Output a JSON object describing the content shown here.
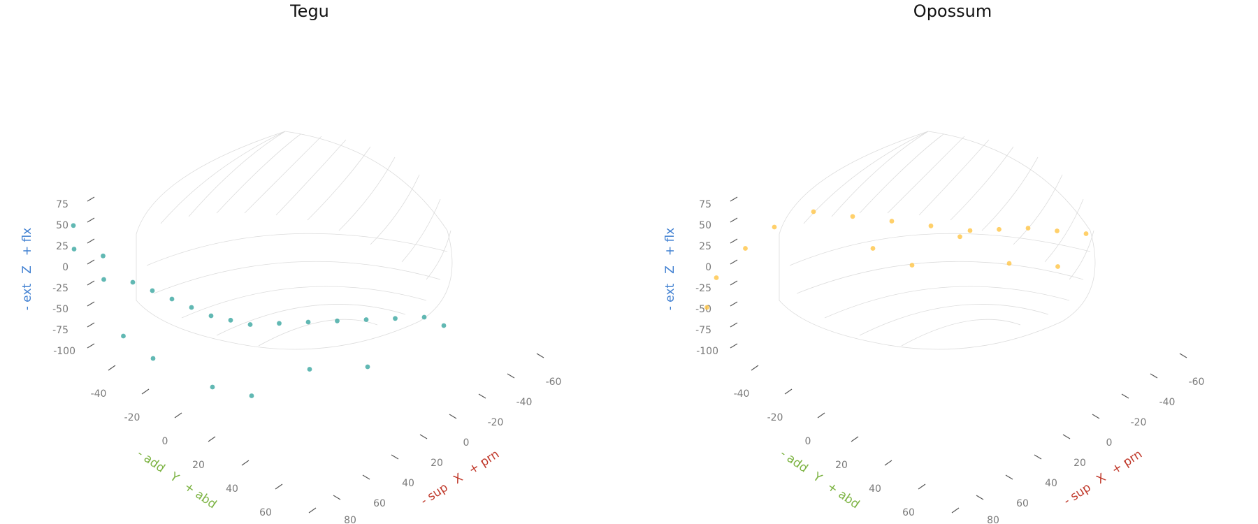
{
  "chart_data": [
    {
      "type": "scatter",
      "title": "Tegu",
      "color": "#3aa6a0",
      "axes": {
        "x": {
          "minus": "- sup",
          "name": "X",
          "plus": "+ prn",
          "color": "#c0392b",
          "ticks": [
            "-60",
            "-40",
            "-20",
            "0",
            "20",
            "40",
            "60",
            "80"
          ]
        },
        "y": {
          "minus": "- add",
          "name": "Y",
          "plus": "+ abd",
          "color": "#7cb342",
          "ticks": [
            "-40",
            "-20",
            "0",
            "20",
            "40",
            "60"
          ]
        },
        "z": {
          "minus": "- ext",
          "name": "Z",
          "plus": "+ flx",
          "color": "#3f7fd1",
          "ticks": [
            "75",
            "50",
            "25",
            "0",
            "-25",
            "-50",
            "-75",
            "-100"
          ]
        }
      },
      "series": [
        {
          "points": [
            {
              "x": 70,
              "y": -40,
              "z": 75
            },
            {
              "x": 75,
              "y": -35,
              "z": 60
            },
            {
              "x": 65,
              "y": -30,
              "z": 45
            },
            {
              "x": 70,
              "y": -25,
              "z": 30
            },
            {
              "x": 60,
              "y": -20,
              "z": 20
            },
            {
              "x": 55,
              "y": -15,
              "z": 10
            },
            {
              "x": 50,
              "y": -10,
              "z": 0
            },
            {
              "x": 45,
              "y": -5,
              "z": -10
            },
            {
              "x": 40,
              "y": 0,
              "z": -20
            },
            {
              "x": 35,
              "y": 5,
              "z": -25
            },
            {
              "x": 30,
              "y": 10,
              "z": -30
            },
            {
              "x": 20,
              "y": 15,
              "z": -35
            },
            {
              "x": 10,
              "y": 20,
              "z": -40
            },
            {
              "x": 0,
              "y": 25,
              "z": -45
            },
            {
              "x": -10,
              "y": 30,
              "z": -50
            },
            {
              "x": -20,
              "y": 35,
              "z": -55
            },
            {
              "x": -30,
              "y": 40,
              "z": -60
            },
            {
              "x": -35,
              "y": 45,
              "z": -70
            },
            {
              "x": 50,
              "y": 10,
              "z": -80
            },
            {
              "x": 40,
              "y": 20,
              "z": -90
            },
            {
              "x": 60,
              "y": -10,
              "z": -60
            },
            {
              "x": 65,
              "y": -20,
              "z": -40
            },
            {
              "x": 20,
              "y": 30,
              "z": -70
            },
            {
              "x": 0,
              "y": 40,
              "z": -80
            }
          ]
        }
      ]
    },
    {
      "type": "scatter",
      "title": "Opossum",
      "color": "#ffc445",
      "axes": {
        "x": {
          "minus": "- sup",
          "name": "X",
          "plus": "+ prn",
          "color": "#c0392b",
          "ticks": [
            "-60",
            "-40",
            "-20",
            "0",
            "20",
            "40",
            "60",
            "80"
          ]
        },
        "y": {
          "minus": "- add",
          "name": "Y",
          "plus": "+ abd",
          "color": "#7cb342",
          "ticks": [
            "-40",
            "-20",
            "0",
            "20",
            "40",
            "60"
          ]
        },
        "z": {
          "minus": "- ext",
          "name": "Z",
          "plus": "+ flx",
          "color": "#3f7fd1",
          "ticks": [
            "75",
            "50",
            "25",
            "0",
            "-25",
            "-50",
            "-75",
            "-100"
          ]
        }
      },
      "series": [
        {
          "points": [
            {
              "x": 40,
              "y": -20,
              "z": 80
            },
            {
              "x": 30,
              "y": -10,
              "z": 75
            },
            {
              "x": 20,
              "y": 0,
              "z": 70
            },
            {
              "x": 10,
              "y": 10,
              "z": 65
            },
            {
              "x": 0,
              "y": 20,
              "z": 60
            },
            {
              "x": -10,
              "y": 25,
              "z": 55
            },
            {
              "x": -20,
              "y": 30,
              "z": 50
            },
            {
              "x": -30,
              "y": 35,
              "z": 40
            },
            {
              "x": -40,
              "y": 40,
              "z": 30
            },
            {
              "x": 50,
              "y": -30,
              "z": 60
            },
            {
              "x": 60,
              "y": -35,
              "z": 40
            },
            {
              "x": 70,
              "y": -40,
              "z": 10
            },
            {
              "x": 75,
              "y": -40,
              "z": -20
            },
            {
              "x": 20,
              "y": 10,
              "z": 30
            },
            {
              "x": -10,
              "y": 30,
              "z": 20
            },
            {
              "x": 30,
              "y": 0,
              "z": 50
            },
            {
              "x": 0,
              "y": 15,
              "z": 45
            },
            {
              "x": -25,
              "y": 40,
              "z": 10
            }
          ]
        }
      ]
    }
  ]
}
